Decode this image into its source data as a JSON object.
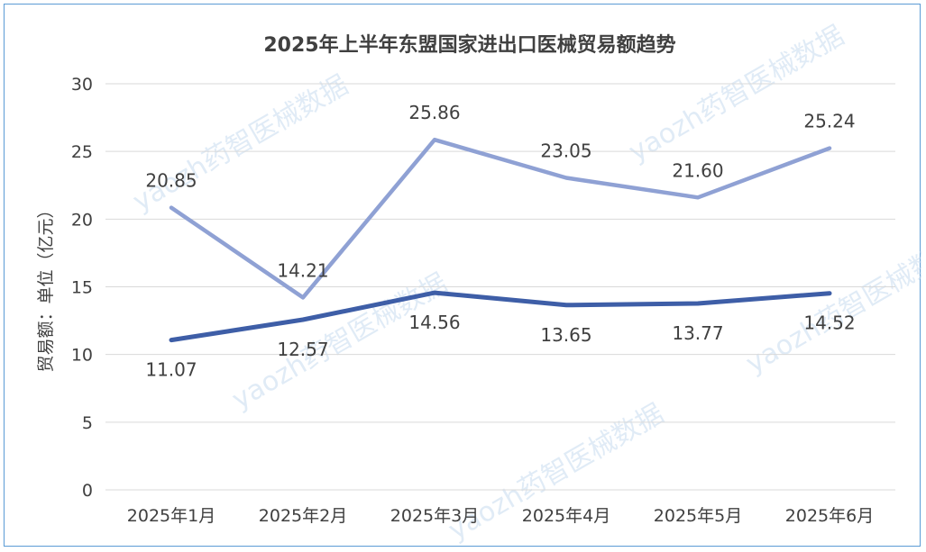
{
  "chart_data": {
    "type": "line",
    "title": "2025年上半年东盟国家进出口医械贸易额趋势",
    "ylabel": "贸易额：单位（亿元）",
    "xlabel": "",
    "ylim": [
      0,
      30
    ],
    "yticks": [
      0,
      5,
      10,
      15,
      20,
      25,
      30
    ],
    "grid": true,
    "legend": "none",
    "categories": [
      "2025年1月",
      "2025年2月",
      "2025年3月",
      "2025年4月",
      "2025年5月",
      "2025年6月"
    ],
    "series": [
      {
        "color": "#8fa1d4",
        "values": [
          20.85,
          14.21,
          25.86,
          23.05,
          21.6,
          25.24
        ],
        "labels": [
          "20.85",
          "14.21",
          "25.86",
          "23.05",
          "21.60",
          "25.24"
        ],
        "label_position": "above"
      },
      {
        "color": "#3e5ea7",
        "values": [
          11.07,
          12.57,
          14.56,
          13.65,
          13.77,
          14.52
        ],
        "labels": [
          "11.07",
          "12.57",
          "14.56",
          "13.65",
          "13.77",
          "14.52"
        ],
        "label_position": "below"
      }
    ]
  },
  "watermark": {
    "text": "yaozh药智医械数据",
    "color": "#c8dcf0"
  },
  "frame_color": "#5b9bd5",
  "gridline_color": "#d9d9d9"
}
